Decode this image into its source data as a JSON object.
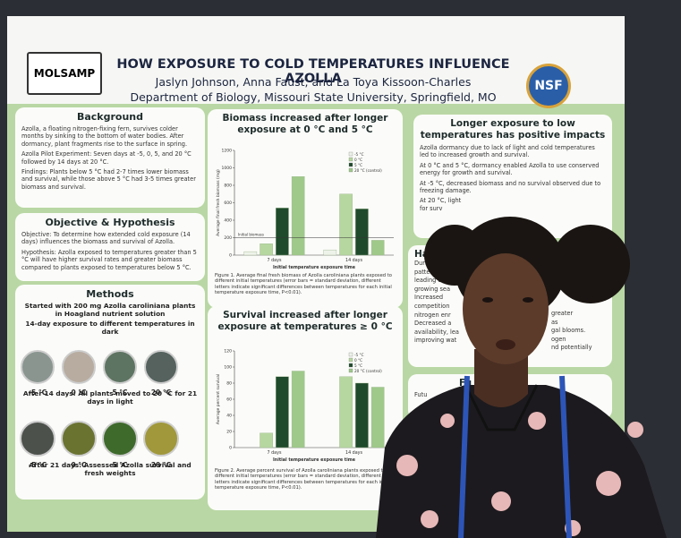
{
  "header": {
    "logo": "MOLSAMP",
    "title": "HOW EXPOSURE TO COLD TEMPERATURES INFLUENCE AZOLLA",
    "authors": "Jaslyn Johnson, Anna Faust, and La Toya Kissoon-Charles",
    "affiliation": "Department of Biology, Missouri State University, Springfield, MO",
    "nsf": "NSF"
  },
  "background": {
    "heading": "Background",
    "paragraphs": [
      "Azolla, a floating nitrogen-fixing fern, survives colder months by sinking to the bottom of water bodies. After dormancy, plant fragments rise to the surface in spring.",
      "Azolla Pilot Experiment: Seven days at -5, 0, 5, and 20 °C followed by 14 days at 20 °C.",
      "Findings: Plants below 5 °C had 2-7 times lower biomass and survival, while those above 5 °C had 3-5 times greater biomass and survival."
    ]
  },
  "objective": {
    "heading": "Objective & Hypothesis",
    "paragraphs": [
      "Objective: To determine how extended cold exposure (14 days) influences the biomass and survival of Azolla.",
      "Hypothesis: Azolla exposed to temperatures greater than 5 °C will have higher survival rates and greater biomass compared to plants exposed to temperatures below 5 °C."
    ]
  },
  "methods": {
    "heading": "Methods",
    "steps": [
      "Started with 200 mg Azolla caroliniana plants in Hoagland nutrient solution",
      "14-day exposure to different temperatures in dark",
      "After 14 days: All plants moved to 20 °C for 21 days in light",
      "After 21 days: Assessed Azolla survival and fresh weights"
    ],
    "dish_labels_1": [
      "-5 °C",
      "0 °C",
      "5 °C",
      "20 °C"
    ],
    "dish_labels_2": [
      "-5 °C",
      "0 °C",
      "5 °C",
      "20 °C"
    ]
  },
  "chart_data": [
    {
      "type": "bar",
      "title": "Biomass increased after longer exposure at 0 °C and 5 °C",
      "y_label": "Average final fresh biomass (mg)",
      "x_label": "Initial temperature exposure time",
      "categories": [
        "7 days",
        "14 days"
      ],
      "series": [
        {
          "name": "-5 °C",
          "color": "#eef3ea",
          "values": [
            40,
            60
          ]
        },
        {
          "name": "0 °C",
          "color": "#b7d7a0",
          "values": [
            130,
            700
          ]
        },
        {
          "name": "5 °C",
          "color": "#1f4a2c",
          "values": [
            540,
            530
          ]
        },
        {
          "name": "20 °C (control)",
          "color": "#9fc98a",
          "values": [
            900,
            170
          ]
        }
      ],
      "ylim": [
        0,
        1200
      ],
      "yticks": [
        0,
        200,
        400,
        600,
        800,
        1000,
        1200
      ],
      "reference_line": {
        "value": 200,
        "label": "Initial biomass"
      },
      "caption": "Figure 1. Average final fresh biomass of Azolla caroliniana plants exposed to different initial temperatures (error bars = standard deviation, different letters indicate significant differences between temperatures for each initial temperature exposure time, P<0.01)."
    },
    {
      "type": "bar",
      "title": "Survival increased after longer exposure at temperatures ≥ 0 °C",
      "y_label": "Average percent survival",
      "x_label": "Initial temperature exposure time",
      "categories": [
        "7 days",
        "14 days"
      ],
      "series": [
        {
          "name": "-5 °C",
          "color": "#eef3ea",
          "values": [
            0,
            0
          ]
        },
        {
          "name": "0 °C",
          "color": "#b7d7a0",
          "values": [
            18,
            88
          ]
        },
        {
          "name": "5 °C",
          "color": "#1f4a2c",
          "values": [
            88,
            80
          ]
        },
        {
          "name": "20 °C (control)",
          "color": "#9fc98a",
          "values": [
            95,
            75
          ]
        }
      ],
      "ylim": [
        0,
        120
      ],
      "yticks": [
        0,
        20,
        40,
        60,
        80,
        100,
        120
      ],
      "caption": "Figure 2. Average percent survival of Azolla caroliniana plants exposed to different initial temperatures (error bars = standard deviation, different letters indicate significant differences between temperatures for each initial temperature exposure time, P<0.01)."
    }
  ],
  "conclusion": {
    "heading": "Longer exposure to low temperatures has positive impacts",
    "bullets": [
      "Azolla dormancy due to lack of light and cold temperatures led to increased growth and survival.",
      "At 0 °C and 5 °C, dormancy enabled Azolla to use conserved energy for growth and survival.",
      "At -5 °C, decreased biomass and no survival observed due to freezing damage.",
      "At 20 °C, light"
    ],
    "fragment": "for surv"
  },
  "implications": {
    "heading": "Ha",
    "lines": [
      "Dura",
      "pattern",
      "leading to",
      "growing sea",
      "Increased",
      "competition",
      "nitrogen enr",
      "Decreased a",
      "availability, lea",
      "improving wat"
    ],
    "right_lines": [
      "greater",
      "as",
      "gal blooms.",
      "ogen",
      "nd potentially"
    ]
  },
  "future": {
    "heading": "Fu",
    "text": "Futu"
  }
}
